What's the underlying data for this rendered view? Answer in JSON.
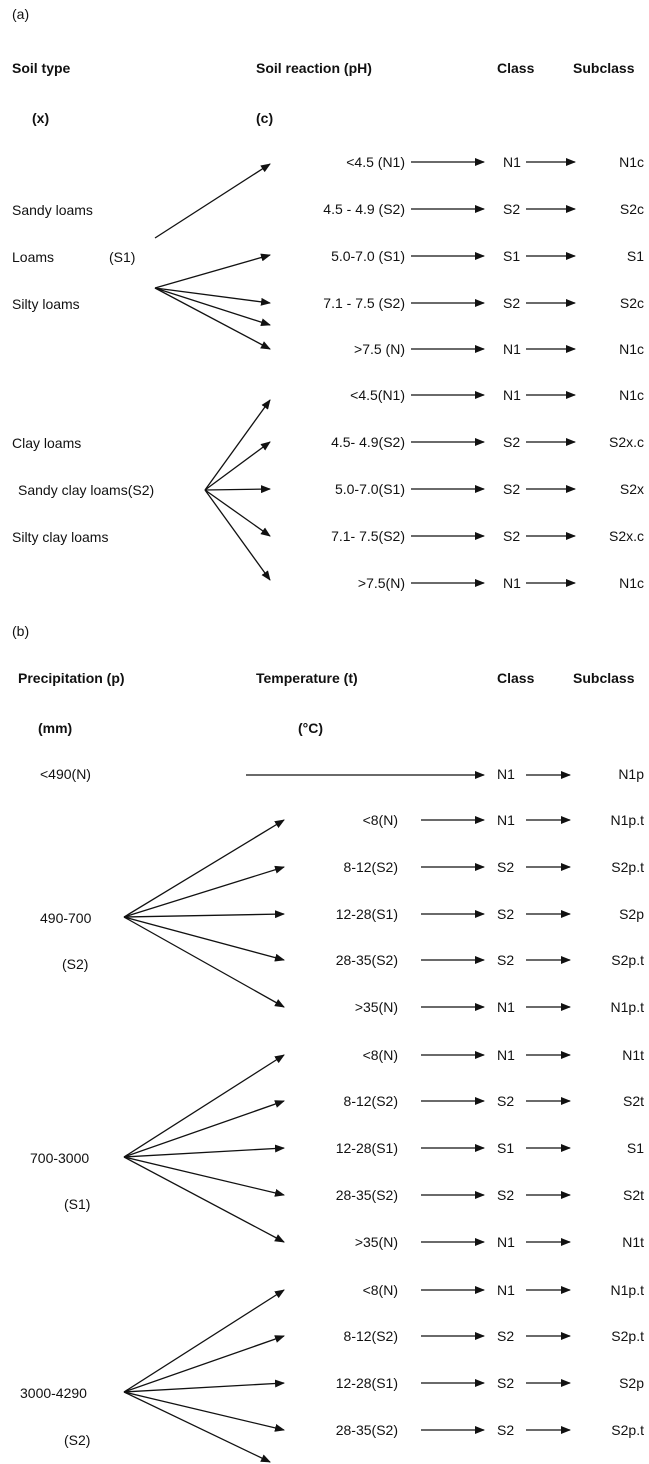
{
  "panel_a": {
    "label": "(a)",
    "headers": {
      "soil_type": "Soil type",
      "soil_reaction": "Soil reaction (pH)",
      "class": "Class",
      "subclass": "Subclass"
    },
    "sub_headers": {
      "soil_type": "(x)",
      "soil_reaction": "(c)"
    },
    "group1": {
      "left": [
        "Sandy loams",
        "Loams",
        "Silty loams"
      ],
      "left_class": "(S1)"
    },
    "group2": {
      "left": [
        "Clay loams",
        "Sandy clay loams(S2)",
        "Silty clay loams"
      ]
    },
    "rows": [
      {
        "reaction": "<4.5 (N1)",
        "class": "N1",
        "subclass": "N1c"
      },
      {
        "reaction": "4.5 - 4.9 (S2)",
        "class": "S2",
        "subclass": "S2c"
      },
      {
        "reaction": "5.0-7.0 (S1)",
        "class": "S1",
        "subclass": "S1"
      },
      {
        "reaction": "7.1 - 7.5 (S2)",
        "class": "S2",
        "subclass": "S2c"
      },
      {
        "reaction": ">7.5 (N)",
        "class": "N1",
        "subclass": "N1c"
      },
      {
        "reaction": "<4.5(N1)",
        "class": "N1",
        "subclass": "N1c"
      },
      {
        "reaction": "4.5- 4.9(S2)",
        "class": "S2",
        "subclass": "S2x.c"
      },
      {
        "reaction": "5.0-7.0(S1)",
        "class": "S2",
        "subclass": "S2x"
      },
      {
        "reaction": "7.1- 7.5(S2)",
        "class": "S2",
        "subclass": "S2x.c"
      },
      {
        "reaction": ">7.5(N)",
        "class": "N1",
        "subclass": "N1c"
      }
    ]
  },
  "panel_b": {
    "label": "(b)",
    "headers": {
      "precipitation": "Precipitation (p)",
      "temperature": "Temperature (t)",
      "class": "Class",
      "subclass": "Subclass"
    },
    "sub_headers": {
      "precipitation": "(mm)",
      "temperature": "(°C)"
    },
    "first_row": {
      "precip": "<490(N)",
      "class": "N1",
      "subclass": "N1p"
    },
    "groups": [
      {
        "precip": "490-700",
        "precip_class": "(S2)",
        "rows": [
          {
            "temp": "<8(N)",
            "class": "N1",
            "subclass": "N1p.t"
          },
          {
            "temp": "8-12(S2)",
            "class": "S2",
            "subclass": "S2p.t"
          },
          {
            "temp": "12-28(S1)",
            "class": "S2",
            "subclass": "S2p"
          },
          {
            "temp": "28-35(S2)",
            "class": "S2",
            "subclass": "S2p.t"
          },
          {
            "temp": ">35(N)",
            "class": "N1",
            "subclass": "N1p.t"
          }
        ]
      },
      {
        "precip": "700-3000",
        "precip_class": "(S1)",
        "rows": [
          {
            "temp": "<8(N)",
            "class": "N1",
            "subclass": "N1t"
          },
          {
            "temp": "8-12(S2)",
            "class": "S2",
            "subclass": "S2t"
          },
          {
            "temp": "12-28(S1)",
            "class": "S1",
            "subclass": "S1"
          },
          {
            "temp": "28-35(S2)",
            "class": "S2",
            "subclass": "S2t"
          },
          {
            "temp": ">35(N)",
            "class": "N1",
            "subclass": "N1t"
          }
        ]
      },
      {
        "precip": "3000-4290",
        "precip_class": "(S2)",
        "rows": [
          {
            "temp": "<8(N)",
            "class": "N1",
            "subclass": "N1p.t"
          },
          {
            "temp": "8-12(S2)",
            "class": "S2",
            "subclass": "S2p.t"
          },
          {
            "temp": "12-28(S1)",
            "class": "S2",
            "subclass": "S2p"
          },
          {
            "temp": "28-35(S2)",
            "class": "S2",
            "subclass": "S2p.t"
          }
        ]
      }
    ]
  }
}
